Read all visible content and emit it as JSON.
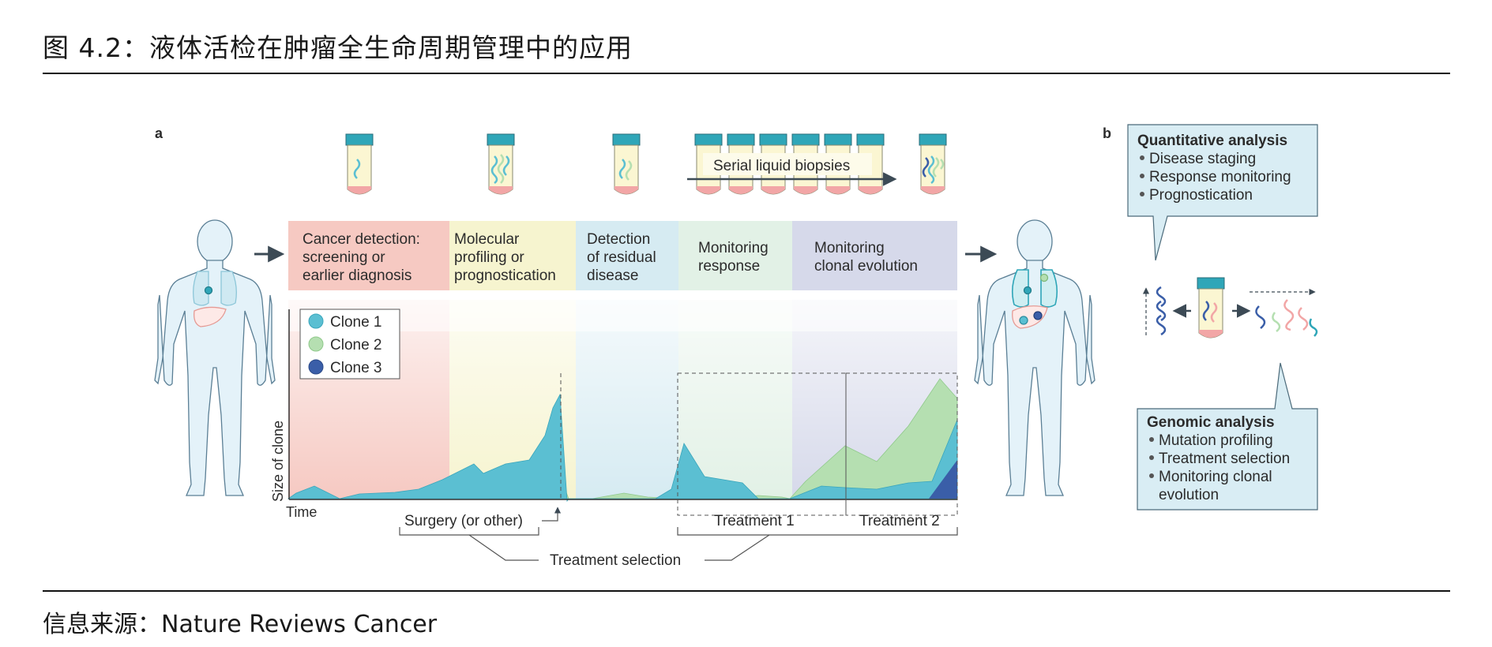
{
  "page": {
    "title": "图 4.2：液体活检在肿瘤全生命周期管理中的应用",
    "source": "信息来源：Nature Reviews Cancer"
  },
  "panel_a": {
    "label": "a",
    "serial_biopsies_label": "Serial liquid biopsies",
    "stages": [
      {
        "lines": [
          "Cancer detection:",
          "screening or",
          "earlier diagnosis"
        ],
        "color": "#f6c9c2"
      },
      {
        "lines": [
          "Molecular",
          "profiling or",
          "prognostication"
        ],
        "color": "#f6f4cf"
      },
      {
        "lines": [
          "Detection",
          "of residual",
          "disease"
        ],
        "color": "#d6ebf2"
      },
      {
        "lines": [
          "Monitoring",
          "response"
        ],
        "color": "#e2f1e6"
      },
      {
        "lines": [
          "Monitoring",
          "clonal evolution"
        ],
        "color": "#d6d9ea"
      }
    ],
    "legend": [
      {
        "label": "Clone 1",
        "color": "#5bbfd2"
      },
      {
        "label": "Clone 2",
        "color": "#b5dfb1"
      },
      {
        "label": "Clone 3",
        "color": "#3a5ea8"
      }
    ],
    "ylabel": "Size of clone",
    "xlabel": "Time",
    "surgery_label": "Surgery (or other)",
    "treatment1_label": "Treatment 1",
    "treatment2_label": "Treatment 2",
    "treatment_selection_label": "Treatment selection"
  },
  "panel_b": {
    "label": "b",
    "quantitative": {
      "title": "Quantitative analysis",
      "items": [
        "Disease staging",
        "Response monitoring",
        "Prognostication"
      ]
    },
    "genomic": {
      "title": "Genomic analysis",
      "items": [
        "Mutation profiling",
        "Treatment selection",
        "Monitoring clonal",
        "evolution"
      ]
    }
  },
  "colors": {
    "tube_cap": "#2fa6b8",
    "tube_body": "#fbf6d2",
    "tube_bottom": "#f2a6a6",
    "body_fill": "#e4f2f9",
    "body_stroke": "#5b7f95",
    "arrow": "#3c4a55",
    "box_fill": "#d9edf4"
  }
}
